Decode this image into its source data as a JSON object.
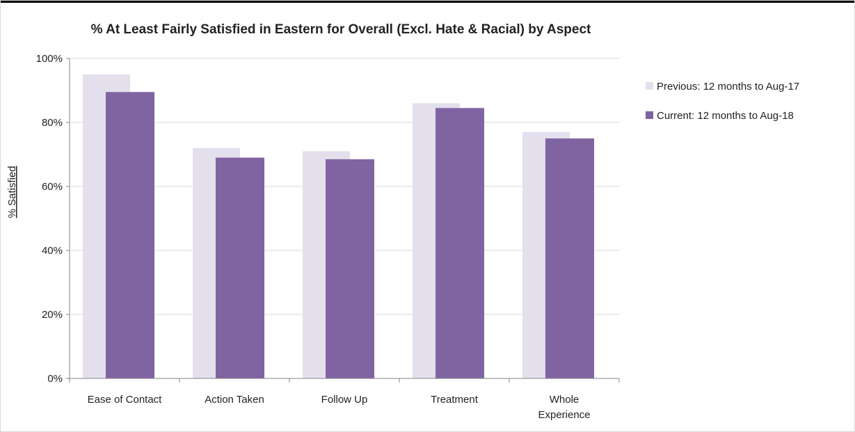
{
  "chart_data": {
    "type": "bar",
    "title": "% At Least Fairly Satisfied in Eastern for Overall (Excl. Hate & Racial) by Aspect",
    "xlabel": "",
    "ylabel": "% Satisfied",
    "categories": [
      [
        "Ease of Contact"
      ],
      [
        "Action Taken"
      ],
      [
        "Follow Up"
      ],
      [
        "Treatment"
      ],
      [
        "Whole",
        "Experience"
      ]
    ],
    "ylim": [
      0,
      100
    ],
    "yticks": [
      "0%",
      "20%",
      "40%",
      "60%",
      "80%",
      "100%"
    ],
    "ytick_values": [
      0,
      20,
      40,
      60,
      80,
      100
    ],
    "grid": true,
    "legend_position": "right",
    "series": [
      {
        "name": "Previous: 12 months to Aug-17",
        "color": "#e4dfec",
        "values": [
          95,
          72,
          71,
          86,
          77
        ]
      },
      {
        "name": "Current: 12 months to Aug-18",
        "color": "#8064a2",
        "values": [
          89.5,
          69,
          68.5,
          84.5,
          75
        ]
      }
    ]
  }
}
